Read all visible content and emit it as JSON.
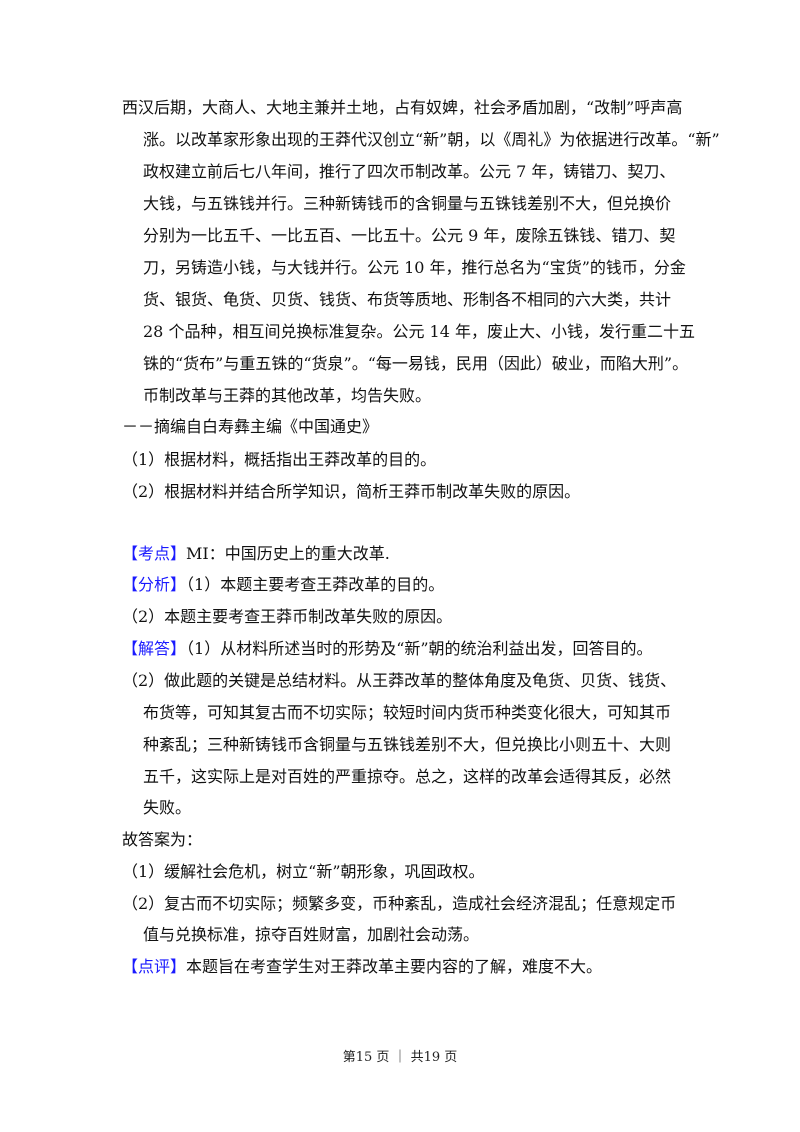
{
  "lines": [
    {
      "text": "西汉后期，大商人、大地主兼并土地，占有奴婢，社会矛盾加剧，“改制”呼声高",
      "indent": false
    },
    {
      "text": "涨。以改革家形象出现的王莽代汉创立“新”朝，以《周礼》为依据进行改革。“新”",
      "indent": true
    },
    {
      "text": "政权建立前后七八年间，推行了四次币制改革。公元 7 年，铸错刀、契刀、",
      "indent": true
    },
    {
      "text": "大钱，与五铢钱并行。三种新铸钱币的含铜量与五铢钱差别不大，但兑换价",
      "indent": true
    },
    {
      "text": "分别为一比五千、一比五百、一比五十。公元 9 年，废除五铢钱、错刀、契",
      "indent": true
    },
    {
      "text": "刀，另铸造小钱，与大钱并行。公元 10 年，推行总名为“宝货”的钱币，分金",
      "indent": true
    },
    {
      "text": "货、银货、龟货、贝货、钱货、布货等质地、形制各不相同的六大类，共计",
      "indent": true
    },
    {
      "text": "28 个品种，相互间兑换标准复杂。公元 14 年，废止大、小钱，发行重二十五",
      "indent": true
    },
    {
      "text": "铢的“货布”与重五铢的“货泉”。“每一易钱，民用（因此）破业，而陷大刑”。",
      "indent": true
    },
    {
      "text": "币制改革与王莽的其他改革，均告失败。",
      "indent": true
    },
    {
      "text": "－－摘编自白寿彝主编《中国通史》",
      "indent": false
    },
    {
      "text": "（1）根据材料，概括指出王莽改革的目的。",
      "indent": false
    },
    {
      "text": "（2）根据材料并结合所学知识，简析王莽币制改革失败的原因。",
      "indent": false
    },
    {
      "label": "【考点】",
      "text": "MI：中国历史上的重大改革.",
      "indent": false
    },
    {
      "label": "【分析】",
      "text": "（1）本题主要考查王莽改革的目的。",
      "indent": false
    },
    {
      "text": "（2）本题主要考查王莽币制改革失败的原因。",
      "indent": false
    },
    {
      "label": "【解答】",
      "text": "（1）从材料所述当时的形势及“新”朝的统治利益出发，回答目的。",
      "indent": false
    },
    {
      "text": "（2）做此题的关键是总结材料。从王莽改革的整体角度及龟货、贝货、钱货、",
      "indent": false
    },
    {
      "text": "布货等，可知其复古而不切实际；较短时间内货币种类变化很大，可知其币",
      "indent": true
    },
    {
      "text": "种紊乱；三种新铸钱币含铜量与五铢钱差别不大，但兑换比小则五十、大则",
      "indent": true
    },
    {
      "text": "五千，这实际上是对百姓的严重掠夺。总之，这样的改革会适得其反，必然",
      "indent": true
    },
    {
      "text": "失败。",
      "indent": true
    },
    {
      "text": "故答案为：",
      "indent": false
    },
    {
      "text": "（1）缓解社会危机，树立“新”朝形象，巩固政权。",
      "indent": false
    },
    {
      "text": "（2）复古而不切实际；频繁多变，币种紊乱，造成社会经济混乱；任意规定币",
      "indent": false
    },
    {
      "text": "值与兑换标准，掠夺百姓财富，加剧社会动荡。",
      "indent": true
    },
    {
      "label": "【点评】",
      "text": "本题旨在考查学生对王莽改革主要内容的了解，难度不大。",
      "indent": false
    }
  ],
  "footer": "第15 页 ｜ 共19 页",
  "colors": {
    "label": "#1a1aff",
    "text": "#111111"
  }
}
